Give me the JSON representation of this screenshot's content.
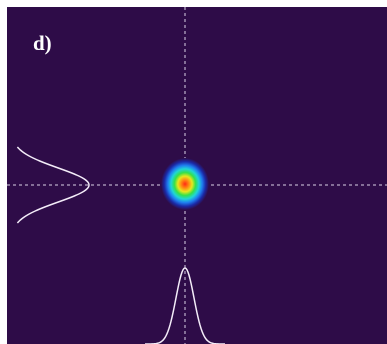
{
  "panel": {
    "label": "d)"
  },
  "colors": {
    "background": "#2e0c48",
    "crosshair": "#d9d2e6",
    "profile_curve": "#f3ecf8",
    "label_text": "#ffffff",
    "beam_colormap": [
      "#2e0c48",
      "#1b2aa8",
      "#1f7df0",
      "#20d6d6",
      "#35e04a",
      "#e6e81f",
      "#ff8a12",
      "#ff2a16"
    ]
  },
  "image": {
    "subject": "beam-intensity-profile",
    "crosshair": "dashed",
    "profiles": [
      "horizontal-profile",
      "vertical-profile"
    ]
  }
}
